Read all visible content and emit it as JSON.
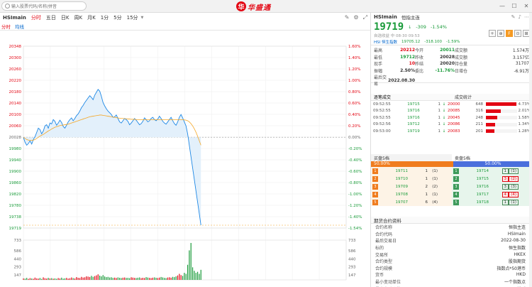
{
  "topbar": {
    "search_placeholder": "输入股票代码/名称/拼音",
    "logo_mark": "华",
    "logo_text": "华盛通",
    "win": {
      "minimize": "—",
      "maximize": "☐",
      "close": "✕"
    }
  },
  "chart": {
    "symbol": "HSImain",
    "tabs": [
      "分时",
      "五日",
      "日K",
      "周K",
      "月K",
      "1分",
      "5分",
      "15分"
    ],
    "active_tab": "分时",
    "sub_tabs": [
      "分时",
      "均线"
    ],
    "price_labels": [
      "20348",
      "20300",
      "20260",
      "20220",
      "20180",
      "20140",
      "20100",
      "20060",
      "20028",
      "19980",
      "19940",
      "19900",
      "19860",
      "19820",
      "19780",
      "19738",
      "19719"
    ],
    "pct_labels": [
      "1.60%",
      "1.40%",
      "1.20%",
      "1.00%",
      "0.80%",
      "0.60%",
      "0.40%",
      "0.20%",
      "0.00%",
      "-0.20%",
      "-0.40%",
      "-0.60%",
      "-0.80%",
      "-1.00%",
      "-1.20%",
      "-1.40%",
      "-1.54%"
    ],
    "vol_labels": [
      "733",
      "586",
      "440",
      "293",
      "147"
    ],
    "time_labels": [
      "17:15",
      "19:00",
      "21:00",
      "23:00",
      "1:00",
      "3:00",
      "9:30",
      "10:00",
      "11:00",
      "13:00",
      "14:00",
      "15:00",
      "16:30"
    ]
  },
  "chart_data": {
    "type": "line",
    "title": "",
    "prev_close": 20028,
    "ylim": [
      19709,
      20348
    ],
    "vol_max": 733,
    "x_sessions": 13,
    "series": [
      {
        "values": [
          20028,
          20010,
          20000,
          20006,
          20015,
          20004,
          20020,
          20030,
          20045,
          20060,
          20055,
          20040,
          20050,
          20068,
          20072,
          20060,
          20078,
          20075,
          20090,
          20084,
          20070,
          20078,
          20088,
          20080,
          20066,
          20060,
          20070,
          20082,
          20090,
          20096,
          20086,
          20094,
          20104,
          20110,
          20120,
          20132,
          20140,
          20150,
          20158,
          20166,
          20174,
          20168,
          20160,
          20176,
          20186,
          20196,
          20190,
          20172,
          20150,
          20138,
          20128,
          20120,
          20114,
          20108,
          20098,
          20100,
          20106,
          20094,
          20082,
          20078,
          20086,
          20094,
          20090,
          20084,
          20072,
          20078,
          20086,
          20094,
          20088,
          20080,
          20072,
          20076,
          20084,
          20096,
          20090,
          20082,
          20086,
          20094,
          20098,
          20090,
          20086,
          20092,
          20102,
          20094,
          20084,
          20078,
          20074,
          20082,
          20090,
          20098,
          20086,
          20076,
          20070,
          20082,
          20098,
          20108,
          20096,
          20082,
          20068,
          20040,
          20000,
          19960,
          19920,
          19880,
          19840,
          19800,
          19760,
          19719
        ]
      },
      {
        "values": [
          20028,
          20024,
          20020,
          20018,
          20017,
          20017,
          20018,
          20020,
          20024,
          20028,
          20032,
          20035,
          20038,
          20042,
          20046,
          20050,
          20053,
          20057,
          20060,
          20063,
          20065,
          20067,
          20069,
          20070,
          20071,
          20072,
          20073,
          20074,
          20076,
          20078,
          20080,
          20082,
          20084,
          20086,
          20088,
          20090,
          20092,
          20094,
          20096,
          20098,
          20100,
          20101,
          20102,
          20103,
          20104,
          20105,
          20106,
          20106,
          20105,
          20104,
          20103,
          20102,
          20101,
          20100,
          20099,
          20098,
          20097,
          20096,
          20095,
          20094,
          20094,
          20093,
          20093,
          20092,
          20092,
          20091,
          20091,
          20091,
          20090,
          20090,
          20090,
          20090,
          20090,
          20090,
          20090,
          20090,
          20090,
          20090,
          20090,
          20090,
          20090,
          20090,
          20090,
          20090,
          20090,
          20090,
          20090,
          20090,
          20090,
          20090,
          20090,
          20090,
          20090,
          20090,
          20090,
          20090,
          20090,
          20089,
          20088,
          20086,
          20082,
          20076,
          20068,
          20058,
          20046,
          20032,
          20016,
          20000
        ]
      }
    ],
    "volume": [
      30,
      25,
      40,
      20,
      35,
      28,
      22,
      45,
      30,
      26,
      38,
      20,
      50,
      33,
      27,
      41,
      29,
      35,
      24,
      30,
      22,
      37,
      28,
      44,
      25,
      31,
      40,
      26,
      33,
      48,
      36,
      29,
      55,
      42,
      38,
      60,
      47,
      52,
      70,
      65,
      58,
      80,
      62,
      75,
      90,
      110,
      85,
      70,
      95,
      68,
      55,
      60,
      48,
      52,
      40,
      45,
      38,
      50,
      42,
      36,
      44,
      48,
      39,
      41,
      35,
      52,
      46,
      40,
      37,
      43,
      49,
      35,
      42,
      38,
      55,
      47,
      40,
      36,
      44,
      50,
      42,
      38,
      46,
      58,
      49,
      40,
      36,
      47,
      52,
      44,
      60,
      55,
      70,
      88,
      120,
      95,
      80,
      140,
      120,
      300,
      586,
      733,
      250,
      180,
      140,
      160,
      120,
      200
    ],
    "volume_colors": [
      "r",
      "g"
    ]
  },
  "quote": {
    "code": "HSImain",
    "name": "恒指主连",
    "last": "19719",
    "arrow": "↓",
    "change": "-309",
    "change_pct": "-1.54%",
    "time": "自选收益 中 08-30 09:53",
    "hsi_label": "HSI 恒生指数",
    "hsi_value": "19705.12",
    "hsi_change": "-318.100",
    "hsi_pct": "-1.59%",
    "btns": [
      "+",
      "⊕",
      "F",
      "⊙",
      "⊞"
    ],
    "rows": [
      {
        "l1": "最高",
        "v1": "20212",
        "c1": "red",
        "l2": "今开",
        "v2": "20011",
        "c2": "grn",
        "l3": "成交额",
        "v3": "1.574万"
      },
      {
        "l1": "最低",
        "v1": "19712",
        "c1": "grn",
        "l2": "昨收",
        "v2": "20028",
        "c2": "blk",
        "l3": "成交额",
        "v3": "3.157亿"
      },
      {
        "l1": "现手",
        "v1": "10",
        "c1": "red",
        "l2": "昨结",
        "v2": "20020",
        "c2": "blk",
        "l3": "持仓量",
        "v3": "31707"
      },
      {
        "l1": "振幅",
        "v1": "2.50%",
        "c1": "blk",
        "l2": "委比",
        "v2": "-11.76%",
        "c2": "grn",
        "l3": "日增仓",
        "v3": "-6.91万"
      },
      {
        "l1": "最后交易",
        "v1": "2022.08.30",
        "c1": "blk",
        "l2": "",
        "v2": "",
        "c2": "blk",
        "l3": "",
        "v3": ""
      }
    ]
  },
  "trades": {
    "tab_left": "逐笔成交",
    "tab_right": "成交统计",
    "rows": [
      {
        "t": "09:52:55",
        "p": "19715",
        "q": "1",
        "a": "↓",
        "p2": "20000",
        "v": "648",
        "w": 97,
        "pc": "4.73%"
      },
      {
        "t": "09:52:55",
        "p": "19716",
        "q": "1",
        "a": "↓",
        "p2": "20085",
        "v": "316",
        "w": 47,
        "pc": "2.01%"
      },
      {
        "t": "09:52:55",
        "p": "19716",
        "q": "1",
        "a": "↓",
        "p2": "20045",
        "v": "248",
        "w": 36,
        "pc": "1.58%"
      },
      {
        "t": "09:52:56",
        "p": "19712",
        "q": "1",
        "a": "↓",
        "p2": "20086",
        "v": "211",
        "w": 30,
        "pc": "1.34%"
      },
      {
        "t": "09:53:00",
        "p": "19719",
        "q": "1",
        "a": "↓",
        "p2": "20083",
        "v": "201",
        "w": 28,
        "pc": "1.28%"
      }
    ]
  },
  "book": {
    "buy_label": "买盘5档",
    "sell_label": "卖盘5档",
    "buy_pct": "50.00%",
    "sell_pct": "50.00%",
    "rows": [
      {
        "bn": "1",
        "bp": "19711",
        "bq": "1",
        "bc": "(1)",
        "sn": "1",
        "sp": "19714",
        "sq": "1",
        "sc": "(1)",
        "hl": false
      },
      {
        "bn": "2",
        "bp": "19710",
        "bq": "1",
        "bc": "(1)",
        "sn": "2",
        "sp": "19715",
        "sq": "3",
        "sc": "(2)",
        "hl": true
      },
      {
        "bn": "3",
        "bp": "19709",
        "bq": "2",
        "bc": "(2)",
        "sn": "3",
        "sp": "19716",
        "sq": "3",
        "sc": "(3)",
        "hl": false
      },
      {
        "bn": "4",
        "bp": "19708",
        "bq": "1",
        "bc": "(1)",
        "sn": "4",
        "sp": "19717",
        "sq": "4",
        "sc": "(4)",
        "hl": true
      },
      {
        "bn": "5",
        "bp": "19707",
        "bq": "6",
        "bc": "(4)",
        "sn": "5",
        "sp": "19718",
        "sq": "1",
        "sc": "(1)",
        "hl": false
      }
    ]
  },
  "info": {
    "title": "期货合约资料",
    "rows": [
      {
        "l": "合约名称",
        "v": "恒指主连"
      },
      {
        "l": "合约代码",
        "v": "HSImain"
      },
      {
        "l": "最后交易日",
        "v": "2022-08-30"
      },
      {
        "l": "标的",
        "v": "恒生指数"
      },
      {
        "l": "交易所",
        "v": "HKEX"
      },
      {
        "l": "合约类型",
        "v": "股指期货"
      },
      {
        "l": "合约规模",
        "v": "指数点*50港币"
      },
      {
        "l": "货币",
        "v": "HKD"
      },
      {
        "l": "最小变动单位",
        "v": "一个指数点"
      },
      {
        "l": "最小变动价值",
        "v": "50港币"
      }
    ]
  },
  "colors": {
    "up": "#e30613",
    "down": "#1a9b3a",
    "line": "#1e88e5",
    "avg": "#f5a623"
  }
}
